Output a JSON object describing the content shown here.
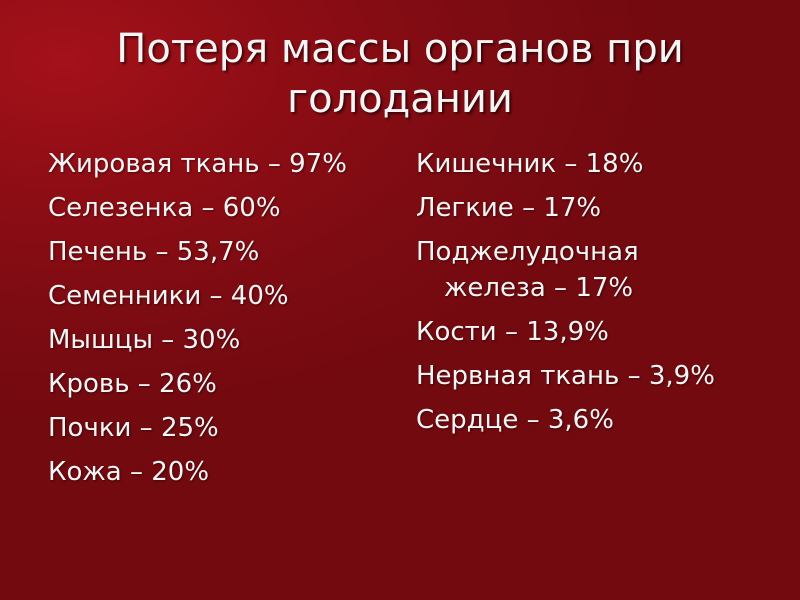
{
  "slide": {
    "title": "Потеря массы органов при голодании",
    "left_items": [
      "Жировая ткань – 97%",
      "Селезенка – 60%",
      "Печень – 53,7%",
      "Семенники – 40%",
      "Мышцы – 30%",
      "Кровь – 26%",
      "Почки – 25%",
      "Кожа – 20%"
    ],
    "right_items": [
      "Кишечник – 18%",
      "Легкие – 17%",
      "Поджелудочная железа – 17%",
      "Кости – 13,9%",
      "Нервная ткань – 3,9%",
      "Сердце – 3,6%"
    ]
  }
}
